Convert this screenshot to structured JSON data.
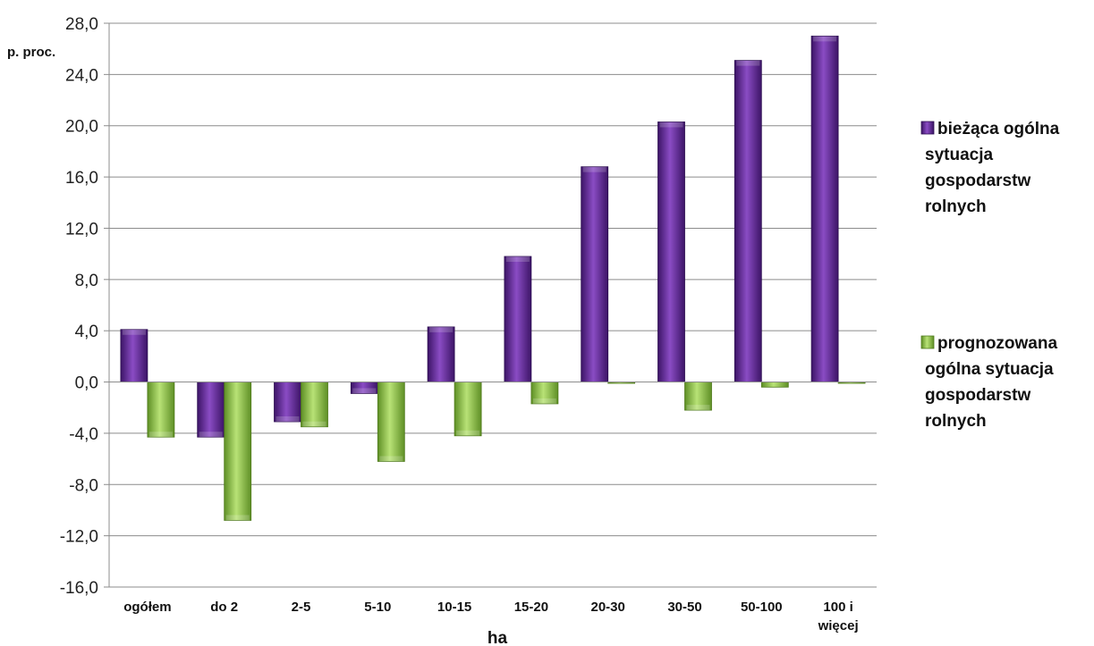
{
  "chart_data": {
    "type": "bar",
    "unit_label": "p. proc.",
    "xlabel": "ha",
    "ylim": [
      -16,
      28
    ],
    "yticks": [
      "28,0",
      "24,0",
      "20,0",
      "16,0",
      "12,0",
      "8,0",
      "4,0",
      "0,0",
      "-4,0",
      "-8,0",
      "-12,0",
      "-16,0"
    ],
    "ytick_values": [
      28,
      24,
      20,
      16,
      12,
      8,
      4,
      0,
      -4,
      -8,
      -12,
      -16
    ],
    "categories": [
      "ogółem",
      "do 2",
      "2-5",
      "5-10",
      "10-15",
      "15-20",
      "20-30",
      "30-50",
      "50-100",
      "100 i więcej"
    ],
    "category_lines": [
      [
        "ogółem"
      ],
      [
        "do 2"
      ],
      [
        "2-5"
      ],
      [
        "5-10"
      ],
      [
        "10-15"
      ],
      [
        "15-20"
      ],
      [
        "20-30"
      ],
      [
        "30-50"
      ],
      [
        "50-100"
      ],
      [
        "100 i",
        "więcej"
      ]
    ],
    "grid": true,
    "legend_position": "right",
    "series": [
      {
        "name": "bieżąca ogólna sytuacja gospodarstw rolnych",
        "legend_lines": [
          "bieżąca ogólna",
          "sytuacja",
          "gospodarstw",
          "rolnych"
        ],
        "color": "#6a2f9c",
        "values": [
          4.1,
          -4.3,
          -3.1,
          -0.9,
          4.3,
          9.8,
          16.8,
          20.3,
          25.1,
          27.0
        ]
      },
      {
        "name": "prognozowana ogólna sytuacja gospodarstw rolnych",
        "legend_lines": [
          "prognozowana",
          "ogólna sytuacja",
          "gospodarstw",
          "rolnych"
        ],
        "color": "#8cc63e",
        "values": [
          -4.3,
          -10.8,
          -3.5,
          -6.2,
          -4.2,
          -1.7,
          0.0,
          -2.2,
          -0.4,
          -0.1
        ]
      }
    ]
  }
}
